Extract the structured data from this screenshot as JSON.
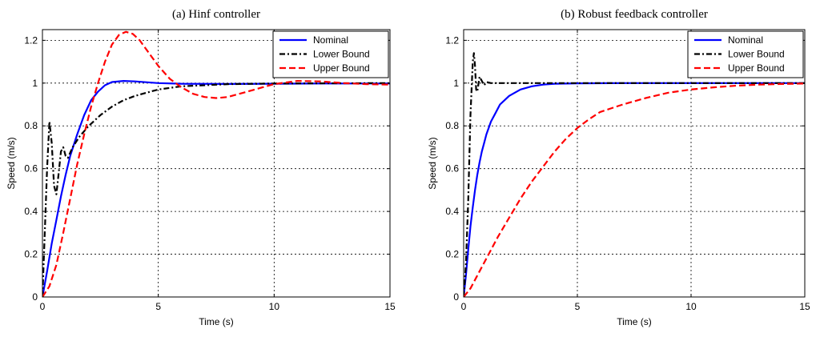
{
  "chart_data": [
    {
      "type": "line",
      "title": "(a) Hinf controller",
      "xlabel": "Time (s)",
      "ylabel": "Speed (m/s)",
      "xlim": [
        0,
        15
      ],
      "ylim": [
        0,
        1.25
      ],
      "x_ticks": [
        0,
        5,
        10,
        15
      ],
      "y_ticks": [
        0,
        0.2,
        0.4,
        0.6,
        0.8,
        1,
        1.2
      ],
      "grid": true,
      "legend_position": "top-right",
      "series": [
        {
          "name": "Nominal",
          "color": "#0000ff",
          "style": "solid",
          "points": [
            [
              0,
              0
            ],
            [
              0.2,
              0.12
            ],
            [
              0.4,
              0.25
            ],
            [
              0.6,
              0.36
            ],
            [
              0.8,
              0.47
            ],
            [
              1.0,
              0.57
            ],
            [
              1.2,
              0.66
            ],
            [
              1.5,
              0.76
            ],
            [
              1.8,
              0.85
            ],
            [
              2.1,
              0.92
            ],
            [
              2.4,
              0.96
            ],
            [
              2.7,
              0.99
            ],
            [
              3.0,
              1.005
            ],
            [
              3.5,
              1.01
            ],
            [
              4.0,
              1.008
            ],
            [
              5,
              1.0
            ],
            [
              6,
              0.997
            ],
            [
              8,
              0.996
            ],
            [
              10,
              0.997
            ],
            [
              12,
              0.998
            ],
            [
              15,
              0.998
            ]
          ]
        },
        {
          "name": "Lower Bound",
          "color": "#000000",
          "style": "dashdot",
          "points": [
            [
              0,
              0
            ],
            [
              0.1,
              0.3
            ],
            [
              0.2,
              0.6
            ],
            [
              0.3,
              0.82
            ],
            [
              0.4,
              0.72
            ],
            [
              0.5,
              0.52
            ],
            [
              0.6,
              0.48
            ],
            [
              0.7,
              0.58
            ],
            [
              0.8,
              0.68
            ],
            [
              0.9,
              0.7
            ],
            [
              1.0,
              0.66
            ],
            [
              1.1,
              0.65
            ],
            [
              1.3,
              0.7
            ],
            [
              1.6,
              0.75
            ],
            [
              2.0,
              0.8
            ],
            [
              2.5,
              0.85
            ],
            [
              3.0,
              0.89
            ],
            [
              3.5,
              0.92
            ],
            [
              4.0,
              0.94
            ],
            [
              5,
              0.97
            ],
            [
              6,
              0.985
            ],
            [
              7,
              0.99
            ],
            [
              8,
              0.995
            ],
            [
              10,
              0.998
            ],
            [
              12,
              0.999
            ],
            [
              15,
              1.0
            ]
          ]
        },
        {
          "name": "Upper Bound",
          "color": "#ff0000",
          "style": "dashed",
          "points": [
            [
              0,
              0
            ],
            [
              0.3,
              0.05
            ],
            [
              0.6,
              0.15
            ],
            [
              0.9,
              0.3
            ],
            [
              1.2,
              0.46
            ],
            [
              1.5,
              0.62
            ],
            [
              1.8,
              0.76
            ],
            [
              2.1,
              0.89
            ],
            [
              2.4,
              1.0
            ],
            [
              2.7,
              1.1
            ],
            [
              3.0,
              1.18
            ],
            [
              3.3,
              1.225
            ],
            [
              3.6,
              1.24
            ],
            [
              3.9,
              1.23
            ],
            [
              4.2,
              1.2
            ],
            [
              4.6,
              1.14
            ],
            [
              5.0,
              1.08
            ],
            [
              5.5,
              1.02
            ],
            [
              6.0,
              0.98
            ],
            [
              6.5,
              0.95
            ],
            [
              7.0,
              0.935
            ],
            [
              7.5,
              0.93
            ],
            [
              8.0,
              0.935
            ],
            [
              8.5,
              0.95
            ],
            [
              9.0,
              0.965
            ],
            [
              9.5,
              0.98
            ],
            [
              10.0,
              0.995
            ],
            [
              11,
              1.01
            ],
            [
              12,
              1.008
            ],
            [
              13,
              1.0
            ],
            [
              14,
              0.995
            ],
            [
              15,
              0.993
            ]
          ]
        }
      ]
    },
    {
      "type": "line",
      "title": "(b) Robust feedback controller",
      "xlabel": "Time (s)",
      "ylabel": "Speed (m/s)",
      "xlim": [
        0,
        15
      ],
      "ylim": [
        0,
        1.25
      ],
      "x_ticks": [
        0,
        5,
        10,
        15
      ],
      "y_ticks": [
        0,
        0.2,
        0.4,
        0.6,
        0.8,
        1,
        1.2
      ],
      "grid": true,
      "legend_position": "top-right",
      "series": [
        {
          "name": "Nominal",
          "color": "#0000ff",
          "style": "solid",
          "points": [
            [
              0,
              0
            ],
            [
              0.1,
              0.1
            ],
            [
              0.2,
              0.22
            ],
            [
              0.3,
              0.33
            ],
            [
              0.4,
              0.42
            ],
            [
              0.5,
              0.5
            ],
            [
              0.6,
              0.57
            ],
            [
              0.7,
              0.63
            ],
            [
              0.8,
              0.68
            ],
            [
              0.9,
              0.72
            ],
            [
              1.0,
              0.76
            ],
            [
              1.2,
              0.82
            ],
            [
              1.4,
              0.86
            ],
            [
              1.6,
              0.9
            ],
            [
              1.8,
              0.92
            ],
            [
              2.0,
              0.94
            ],
            [
              2.5,
              0.97
            ],
            [
              3.0,
              0.985
            ],
            [
              3.5,
              0.993
            ],
            [
              4.0,
              0.997
            ],
            [
              5,
              0.999
            ],
            [
              7,
              1.0
            ],
            [
              10,
              1.0
            ],
            [
              15,
              1.0
            ]
          ]
        },
        {
          "name": "Lower Bound",
          "color": "#000000",
          "style": "dashdot",
          "points": [
            [
              0,
              0
            ],
            [
              0.1,
              0.15
            ],
            [
              0.2,
              0.45
            ],
            [
              0.3,
              0.85
            ],
            [
              0.4,
              1.1
            ],
            [
              0.45,
              1.14
            ],
            [
              0.5,
              1.08
            ],
            [
              0.55,
              0.97
            ],
            [
              0.6,
              0.96
            ],
            [
              0.7,
              1.03
            ],
            [
              0.8,
              1.01
            ],
            [
              0.9,
              0.99
            ],
            [
              1.0,
              1.005
            ],
            [
              1.2,
              1.0
            ],
            [
              1.5,
              1.0
            ],
            [
              3,
              1.0
            ],
            [
              15,
              1.0
            ]
          ]
        },
        {
          "name": "Upper Bound",
          "color": "#ff0000",
          "style": "dashed",
          "points": [
            [
              0,
              0
            ],
            [
              0.3,
              0.04
            ],
            [
              0.6,
              0.1
            ],
            [
              1.0,
              0.18
            ],
            [
              1.5,
              0.28
            ],
            [
              2.0,
              0.37
            ],
            [
              2.5,
              0.46
            ],
            [
              3.0,
              0.54
            ],
            [
              3.5,
              0.61
            ],
            [
              4.0,
              0.68
            ],
            [
              4.5,
              0.74
            ],
            [
              5.0,
              0.79
            ],
            [
              5.5,
              0.83
            ],
            [
              6.0,
              0.865
            ],
            [
              7.0,
              0.9
            ],
            [
              8.0,
              0.93
            ],
            [
              9.0,
              0.955
            ],
            [
              10.0,
              0.97
            ],
            [
              11,
              0.98
            ],
            [
              12,
              0.988
            ],
            [
              13,
              0.993
            ],
            [
              14,
              0.996
            ],
            [
              15,
              0.998
            ]
          ]
        }
      ]
    }
  ]
}
